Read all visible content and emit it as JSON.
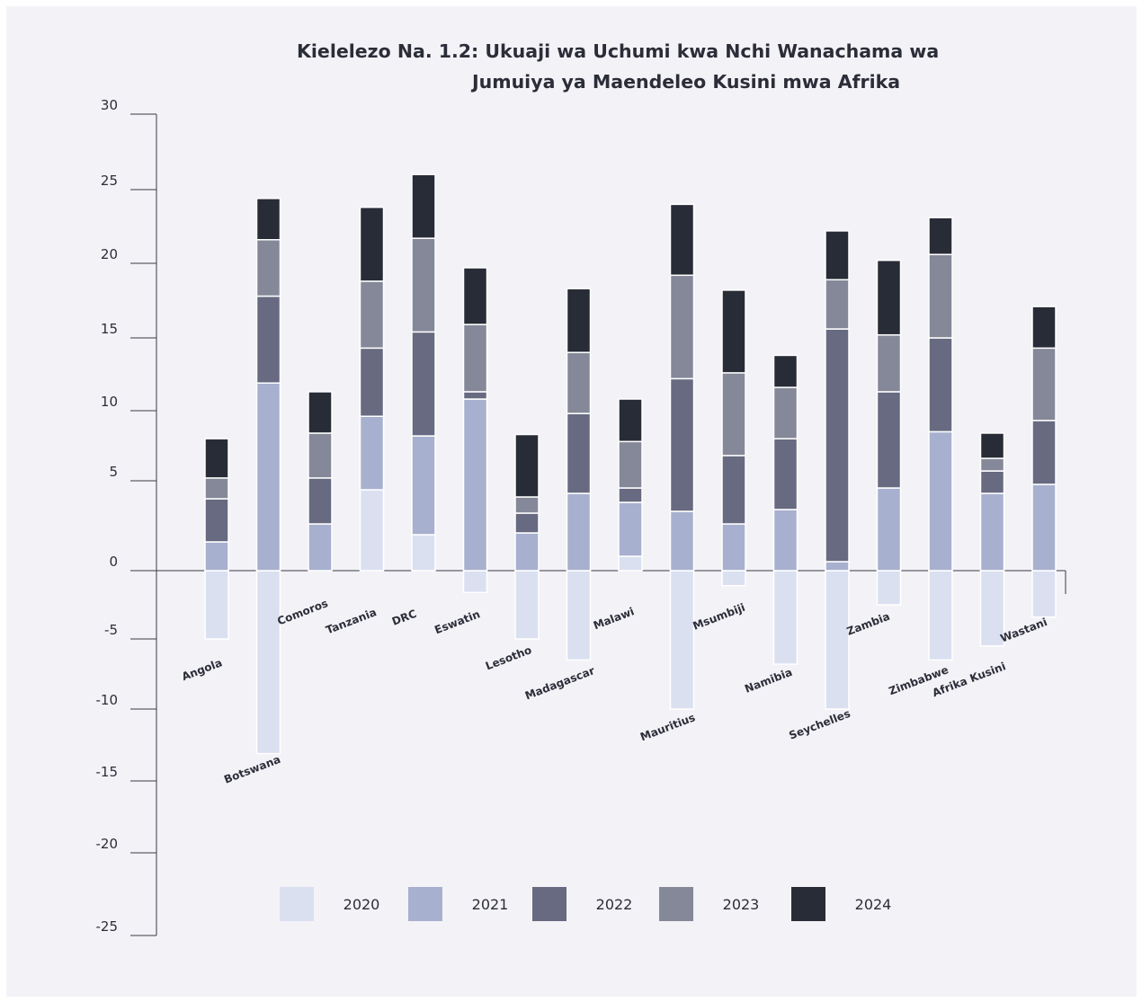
{
  "chart_data": {
    "type": "bar",
    "stacked": true,
    "title": [
      "Kielelezo Na. 1.2: Ukuaji wa Uchumi kwa Nchi Wanachama wa",
      "Jumuiya ya Maendeleo Kusini mwa Afrika"
    ],
    "xlabel": "",
    "ylabel": "",
    "ylim": [
      -25,
      30
    ],
    "yticks": [
      30,
      25,
      20,
      15,
      10,
      5,
      0,
      -5,
      -10,
      -15,
      -20,
      -25
    ],
    "grid": false,
    "legend_position": "bottom",
    "categories": [
      "Angola",
      "Botswana",
      "Comoros",
      "Tanzania",
      "DRC",
      "Eswatin",
      "Lesotho",
      "Madagascar",
      "Malawi",
      "Mauritius",
      "Msumbiji",
      "Namibia",
      "Seychelles",
      "Zambia",
      "Zimbabwe",
      "Afrika Kusini",
      "Wastani"
    ],
    "series": [
      {
        "name": "2020",
        "color": "#dbe0f1",
        "values": [
          -5.0,
          -13.1,
          0.0,
          4.5,
          2.0,
          -1.6,
          -5.0,
          -6.5,
          0.8,
          -10.0,
          -1.1,
          -6.8,
          -10.0,
          -2.5,
          -6.5,
          -5.5,
          -3.4
        ]
      },
      {
        "name": "2021",
        "color": "#a8b0cf",
        "values": [
          1.6,
          11.9,
          2.6,
          5.1,
          6.2,
          10.8,
          2.1,
          4.3,
          3.0,
          3.3,
          2.6,
          3.4,
          0.5,
          4.6,
          8.5,
          4.3,
          4.8
        ]
      },
      {
        "name": "2022",
        "color": "#676a80",
        "values": [
          2.4,
          5.9,
          2.6,
          4.7,
          7.2,
          0.5,
          1.1,
          5.5,
          0.8,
          8.9,
          4.2,
          4.6,
          15.1,
          6.7,
          6.5,
          1.4,
          4.5
        ]
      },
      {
        "name": "2023",
        "color": "#858898",
        "values": [
          1.2,
          3.8,
          3.2,
          4.5,
          6.3,
          4.6,
          0.9,
          4.2,
          3.2,
          7.0,
          5.8,
          3.6,
          3.3,
          3.9,
          5.6,
          0.9,
          5.0
        ]
      },
      {
        "name": "2024",
        "color": "#282c36",
        "values": [
          2.8,
          2.8,
          2.9,
          5.0,
          4.3,
          3.8,
          4.2,
          4.3,
          3.0,
          4.8,
          5.6,
          2.2,
          3.3,
          5.0,
          2.5,
          1.8,
          2.8
        ]
      }
    ]
  }
}
